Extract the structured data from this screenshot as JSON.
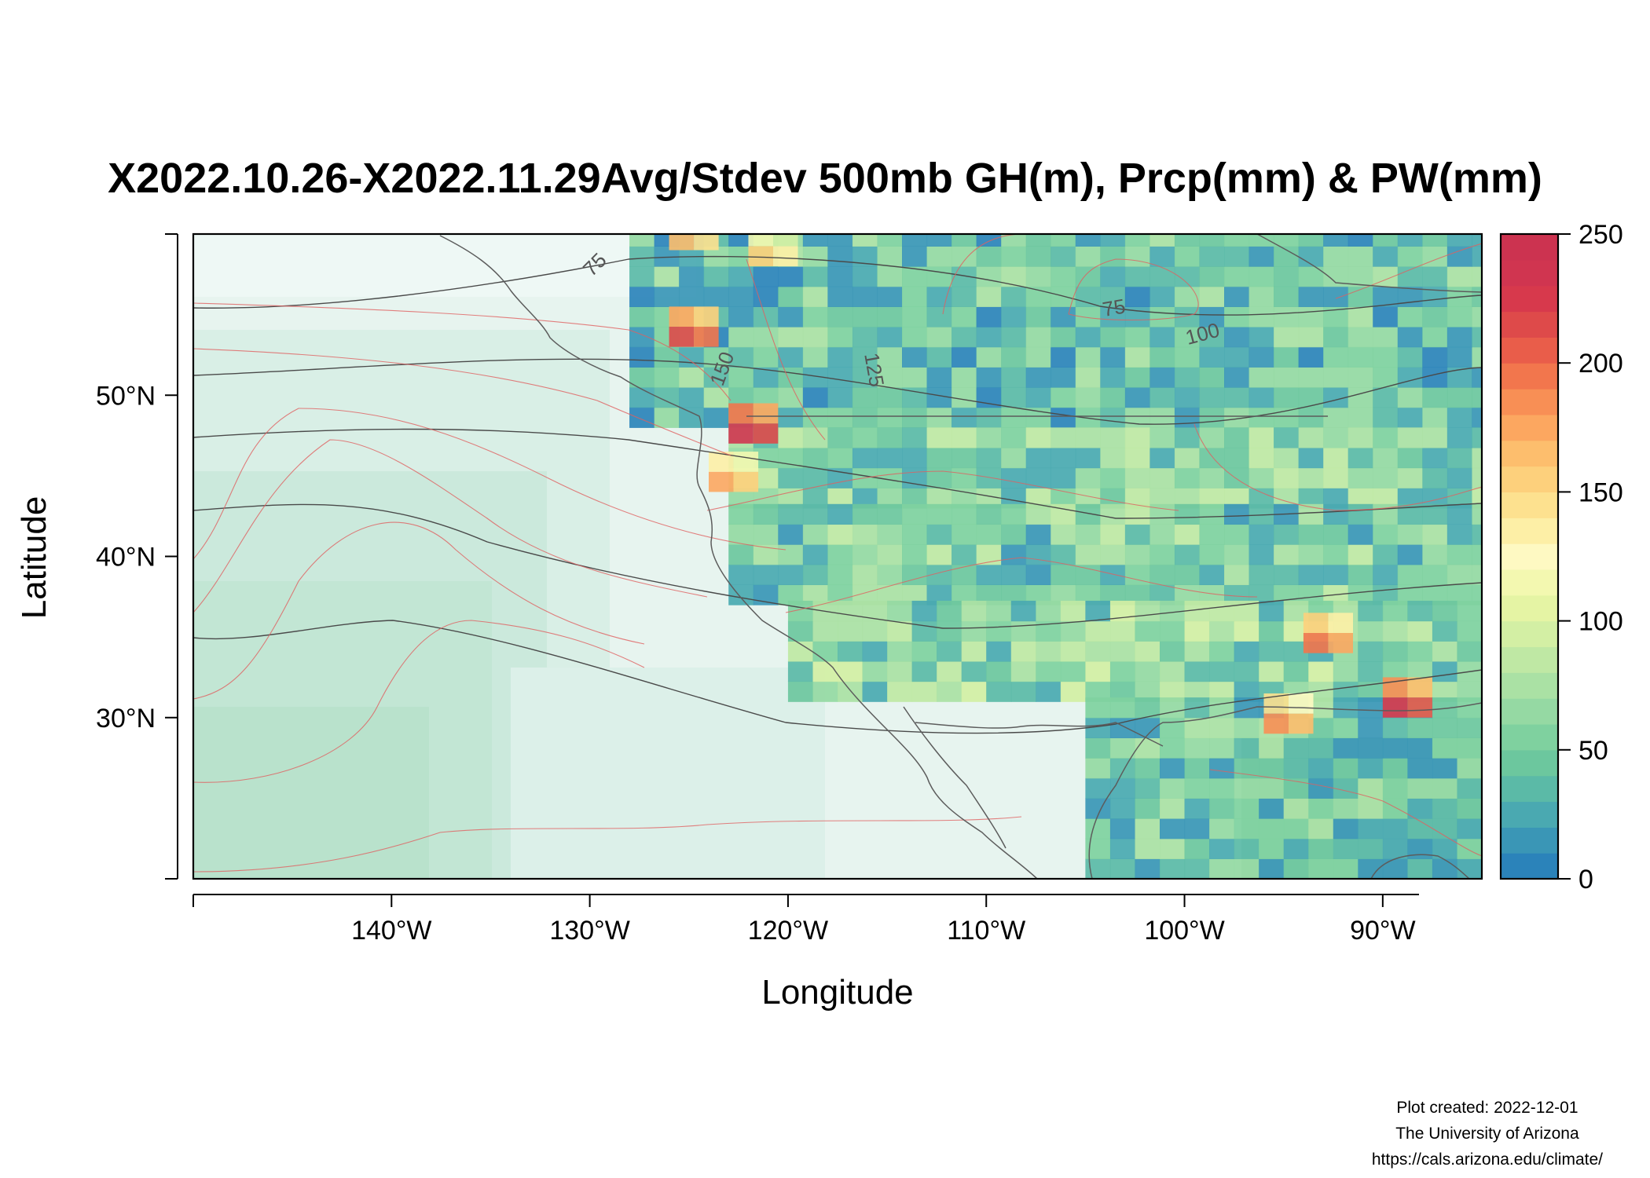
{
  "title": "X2022.10.26-X2022.11.29Avg/Stdev 500mb GH(m), Prcp(mm) & PW(mm)",
  "credits": {
    "line1": "Plot created: 2022-12-01",
    "line2": "The University of Arizona",
    "line3": "https://cals.arizona.edu/climate/"
  },
  "chart_data": {
    "type": "heatmap",
    "title": "X2022.10.26-X2022.11.29Avg/Stdev 500mb GH(m), Prcp(mm) & PW(mm)",
    "xlabel": "Longitude",
    "ylabel": "Latitude",
    "xlim": [
      -150,
      -85
    ],
    "ylim": [
      20,
      60
    ],
    "x_ticks": [
      {
        "value": -140,
        "label": "140°W"
      },
      {
        "value": -130,
        "label": "130°W"
      },
      {
        "value": -120,
        "label": "120°W"
      },
      {
        "value": -110,
        "label": "110°W"
      },
      {
        "value": -100,
        "label": "100°W"
      },
      {
        "value": -90,
        "label": "90°W"
      }
    ],
    "y_ticks": [
      {
        "value": 30,
        "label": "30°N"
      },
      {
        "value": 40,
        "label": "40°N"
      },
      {
        "value": 50,
        "label": "50°N"
      }
    ],
    "colorbar": {
      "min": 0,
      "max": 250,
      "ticks": [
        0,
        50,
        100,
        150,
        200,
        250
      ],
      "colors": [
        "#2b83ba",
        "#3a96b6",
        "#4aa9b1",
        "#5bbaa7",
        "#6cc79e",
        "#7fd19f",
        "#95d9a3",
        "#aae1a4",
        "#bfe8a4",
        "#d3efa4",
        "#e5f4a4",
        "#f3f8b0",
        "#fef9c2",
        "#fdefa6",
        "#fde18f",
        "#fdd07c",
        "#fdbe6d",
        "#fca760",
        "#f88f55",
        "#f2764d",
        "#e95d4a",
        "#de4a4a",
        "#d7394c",
        "#d03550",
        "#cc3350"
      ]
    },
    "contour_labels": [
      "75",
      "75",
      "100",
      "125",
      "150"
    ],
    "precip_bands": [
      {
        "lat_min": 48,
        "lat_max": 60,
        "lon_min": -128,
        "lon_max": -85,
        "value": 40
      },
      {
        "lat_min": 43,
        "lat_max": 48,
        "lon_min": -123,
        "lon_max": -85,
        "value": 55
      },
      {
        "lat_min": 37,
        "lat_max": 43,
        "lon_min": -123,
        "lon_max": -85,
        "value": 50
      },
      {
        "lat_min": 31,
        "lat_max": 37,
        "lon_min": -120,
        "lon_max": -85,
        "value": 60
      },
      {
        "lat_min": 20,
        "lat_max": 31,
        "lon_min": -105,
        "lon_max": -85,
        "value": 45
      }
    ],
    "hotspots": [
      {
        "lon": -123,
        "lat": 47,
        "value": 230
      },
      {
        "lon": -126,
        "lat": 53,
        "value": 210
      },
      {
        "lon": -124,
        "lat": 44,
        "value": 170
      },
      {
        "lon": -94,
        "lat": 34,
        "value": 190
      },
      {
        "lon": -90,
        "lat": 30,
        "value": 220
      },
      {
        "lon": -96,
        "lat": 29,
        "value": 180
      },
      {
        "lon": -126,
        "lat": 59,
        "value": 160
      },
      {
        "lon": -122,
        "lat": 58,
        "value": 150
      }
    ]
  }
}
